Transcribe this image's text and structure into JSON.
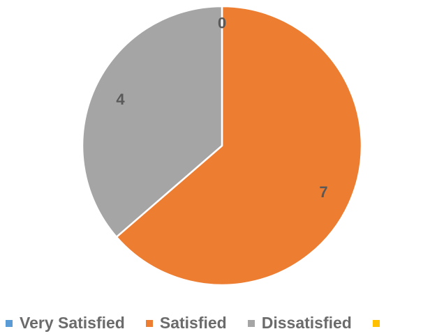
{
  "chart_data": {
    "type": "pie",
    "categories": [
      "Very Satisfied",
      "Satisfied",
      "Dissatisfied",
      ""
    ],
    "values": [
      0,
      7,
      4,
      0
    ],
    "data_labels": [
      "0",
      "7",
      "4",
      ""
    ],
    "colors": [
      "#5b9bd5",
      "#ed7d31",
      "#a5a5a5",
      "#ffc000"
    ],
    "legend_position": "bottom"
  }
}
